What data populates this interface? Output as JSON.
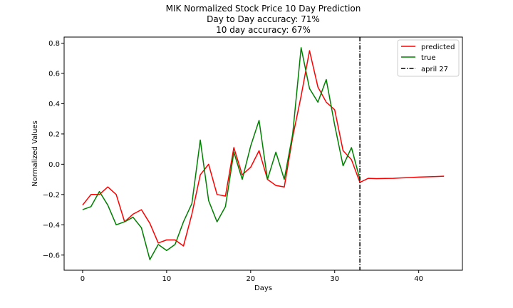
{
  "chart_data": {
    "type": "line",
    "title_lines": [
      "MIK Normalized Stock Price 10 Day Prediction",
      "Day to Day accuracy: 71%",
      "10 day accuracy: 67%"
    ],
    "xlabel": "Days",
    "ylabel": "Normalized Values",
    "xlim": [
      -2.2,
      45.2
    ],
    "ylim": [
      -0.7,
      0.84
    ],
    "xticks": [
      0,
      10,
      20,
      30,
      40
    ],
    "yticks": [
      -0.6,
      -0.4,
      -0.2,
      0.0,
      0.2,
      0.4,
      0.6,
      0.8
    ],
    "ytick_labels": [
      "−0.6",
      "−0.4",
      "−0.2",
      "0.0",
      "0.2",
      "0.4",
      "0.6",
      "0.8"
    ],
    "grid": false,
    "legend_position": "top-right",
    "series": [
      {
        "name": "predicted",
        "color": "#ff0000",
        "x": [
          0,
          1,
          2,
          3,
          4,
          5,
          6,
          7,
          8,
          9,
          10,
          11,
          12,
          13,
          14,
          15,
          16,
          17,
          18,
          19,
          20,
          21,
          22,
          23,
          24,
          25,
          26,
          27,
          28,
          29,
          30,
          31,
          32,
          33,
          34,
          35,
          36,
          37,
          38,
          39,
          40,
          41,
          42,
          43
        ],
        "y": [
          -0.27,
          -0.2,
          -0.2,
          -0.15,
          -0.2,
          -0.38,
          -0.33,
          -0.3,
          -0.39,
          -0.52,
          -0.5,
          -0.5,
          -0.54,
          -0.33,
          -0.07,
          0.0,
          -0.2,
          -0.21,
          0.11,
          -0.07,
          -0.02,
          0.09,
          -0.1,
          -0.14,
          -0.15,
          0.18,
          0.45,
          0.75,
          0.51,
          0.41,
          0.36,
          0.09,
          0.03,
          -0.12,
          -0.093,
          -0.095,
          -0.094,
          -0.093,
          -0.09,
          -0.088,
          -0.085,
          -0.083,
          -0.081,
          -0.079
        ]
      },
      {
        "name": "true",
        "color": "#008000",
        "x": [
          0,
          1,
          2,
          3,
          4,
          5,
          6,
          7,
          8,
          9,
          10,
          11,
          12,
          13,
          14,
          15,
          16,
          17,
          18,
          19,
          20,
          21,
          22,
          23,
          24,
          25,
          26,
          27,
          28,
          29,
          30,
          31,
          32,
          33
        ],
        "y": [
          -0.3,
          -0.28,
          -0.18,
          -0.27,
          -0.4,
          -0.38,
          -0.35,
          -0.42,
          -0.63,
          -0.53,
          -0.57,
          -0.53,
          -0.38,
          -0.26,
          0.16,
          -0.24,
          -0.38,
          -0.28,
          0.08,
          -0.1,
          0.12,
          0.29,
          -0.1,
          0.08,
          -0.1,
          0.2,
          0.77,
          0.5,
          0.41,
          0.56,
          0.26,
          -0.01,
          0.11,
          -0.1
        ]
      }
    ],
    "vline": {
      "name": "april 27",
      "x": 33,
      "color": "#000000",
      "style": "dash-dot"
    }
  }
}
